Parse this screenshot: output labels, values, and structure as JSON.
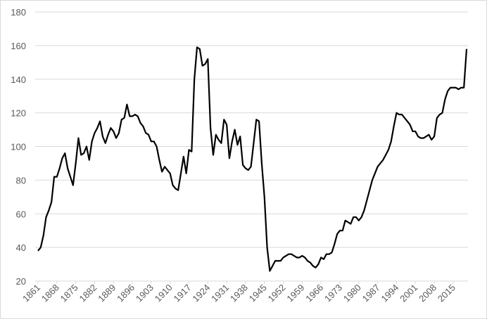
{
  "chart_data": {
    "type": "line",
    "x": [
      1861,
      1862,
      1863,
      1864,
      1865,
      1866,
      1867,
      1868,
      1869,
      1870,
      1871,
      1872,
      1873,
      1874,
      1875,
      1876,
      1877,
      1878,
      1879,
      1880,
      1881,
      1882,
      1883,
      1884,
      1885,
      1886,
      1887,
      1888,
      1889,
      1890,
      1891,
      1892,
      1893,
      1894,
      1895,
      1896,
      1897,
      1898,
      1899,
      1900,
      1901,
      1902,
      1903,
      1904,
      1905,
      1906,
      1907,
      1908,
      1909,
      1910,
      1911,
      1912,
      1913,
      1914,
      1915,
      1916,
      1917,
      1918,
      1919,
      1920,
      1921,
      1922,
      1923,
      1924,
      1925,
      1926,
      1927,
      1928,
      1929,
      1930,
      1931,
      1932,
      1933,
      1934,
      1935,
      1936,
      1937,
      1938,
      1939,
      1940,
      1941,
      1942,
      1943,
      1944,
      1945,
      1946,
      1947,
      1948,
      1949,
      1950,
      1951,
      1952,
      1953,
      1954,
      1955,
      1956,
      1957,
      1958,
      1959,
      1960,
      1961,
      1962,
      1963,
      1964,
      1965,
      1966,
      1967,
      1968,
      1969,
      1970,
      1971,
      1972,
      1973,
      1974,
      1975,
      1976,
      1977,
      1978,
      1979,
      1980,
      1981,
      1982,
      1983,
      1984,
      1985,
      1986,
      1987,
      1988,
      1989,
      1990,
      1991,
      1992,
      1993,
      1994,
      1995,
      1996,
      1997,
      1998,
      1999,
      2000,
      2001,
      2002,
      2003,
      2004,
      2005,
      2006,
      2007,
      2008,
      2009,
      2010,
      2011,
      2012,
      2013,
      2014,
      2015,
      2016,
      2017,
      2018,
      2019,
      2020
    ],
    "values": [
      38,
      40,
      47,
      58,
      62,
      67,
      82,
      82,
      87,
      93,
      96,
      87,
      82,
      77,
      90,
      105,
      95,
      96,
      100,
      92,
      103,
      108,
      111,
      115,
      106,
      102,
      107,
      111,
      109,
      105,
      108,
      116,
      117,
      125,
      118,
      118,
      119,
      118,
      114,
      112,
      108,
      107,
      103,
      103,
      100,
      92,
      85,
      88,
      86,
      84,
      77,
      75,
      74,
      84,
      94,
      84,
      98,
      97,
      140,
      159,
      158,
      148,
      149,
      152,
      111,
      95,
      107,
      104,
      102,
      116,
      113,
      93,
      103,
      110,
      101,
      106,
      89,
      87,
      86,
      88,
      102,
      116,
      115,
      90,
      70,
      40,
      26,
      29,
      32,
      32,
      32,
      34,
      35,
      36,
      36,
      35,
      34,
      34,
      35,
      34,
      32,
      31,
      29,
      28,
      30,
      34,
      33,
      36,
      36,
      37,
      42,
      48,
      50,
      50,
      56,
      55,
      54,
      58,
      58,
      56,
      58,
      62,
      68,
      74,
      80,
      84,
      88,
      90,
      92,
      95,
      98,
      103,
      112,
      120,
      119,
      119,
      117,
      115,
      113,
      109,
      109,
      106,
      105,
      105,
      106,
      107,
      104,
      106,
      117,
      119,
      120,
      128,
      133,
      135,
      135,
      135,
      134,
      135,
      135,
      158
    ],
    "color": "#000000",
    "xlim": [
      1861,
      2020
    ],
    "xticks": [
      1861,
      1868,
      1875,
      1882,
      1889,
      1896,
      1903,
      1910,
      1917,
      1924,
      1931,
      1938,
      1945,
      1952,
      1959,
      1966,
      1973,
      1980,
      1987,
      1994,
      2001,
      2008,
      2015
    ],
    "ylim": [
      20,
      180
    ],
    "yticks": [
      20,
      40,
      60,
      80,
      100,
      120,
      140,
      160,
      180
    ],
    "grid": true
  }
}
